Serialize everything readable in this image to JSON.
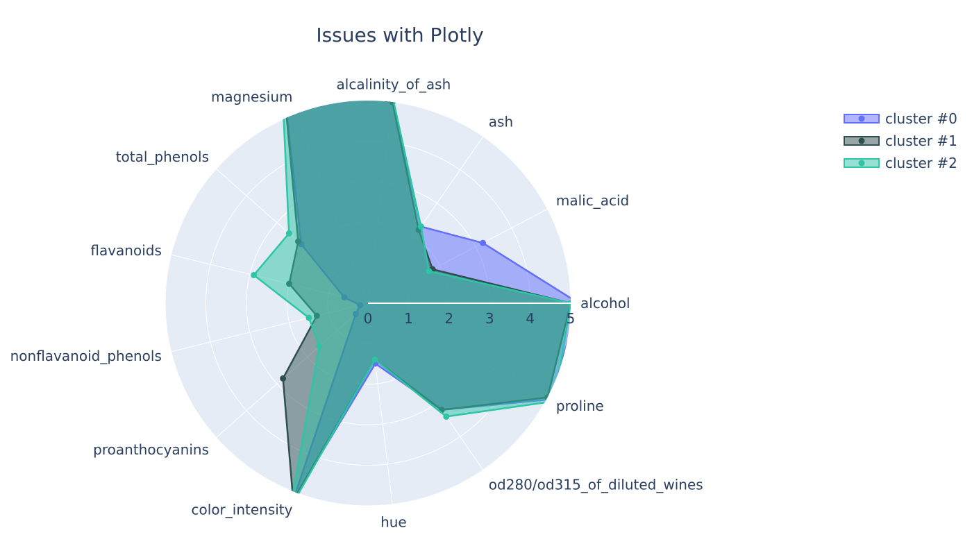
{
  "chart_data": {
    "type": "radar",
    "title": "Issues with Plotly",
    "categories": [
      "alcohol",
      "malic_acid",
      "ash",
      "alcalinity_of_ash",
      "magnesium",
      "total_phenols",
      "flavanoids",
      "nonflavanoid_phenols",
      "proanthocyanins",
      "color_intensity",
      "hue",
      "od280/od315_of_diluted_wines",
      "proline"
    ],
    "radial_range": [
      0,
      5
    ],
    "radial_ticks": [
      0,
      1,
      2,
      3,
      4,
      5
    ],
    "radial_tick_labels": [
      "0",
      "1",
      "2",
      "3",
      "4",
      "5"
    ],
    "grid": true,
    "legend_position": "top-right",
    "fill": "toself",
    "series": [
      {
        "name": "cluster #0",
        "color": "#636efa",
        "values": [
          5.2,
          3.2,
          2.3,
          5.0,
          5.9,
          2.2,
          0.6,
          0.2,
          0.4,
          5.2,
          1.5,
          3.2,
          5.1
        ]
      },
      {
        "name": "cluster #1",
        "color": "#2f4f4f",
        "values": [
          5.0,
          1.8,
          2.2,
          5.0,
          5.9,
          2.3,
          2.0,
          1.3,
          2.8,
          5.2,
          1.4,
          3.2,
          5.0
        ]
      },
      {
        "name": "cluster #2",
        "color": "#2ec4a6",
        "values": [
          5.0,
          1.7,
          2.3,
          5.1,
          6.0,
          2.6,
          2.9,
          1.5,
          1.6,
          5.4,
          1.4,
          3.4,
          5.2
        ]
      }
    ]
  }
}
